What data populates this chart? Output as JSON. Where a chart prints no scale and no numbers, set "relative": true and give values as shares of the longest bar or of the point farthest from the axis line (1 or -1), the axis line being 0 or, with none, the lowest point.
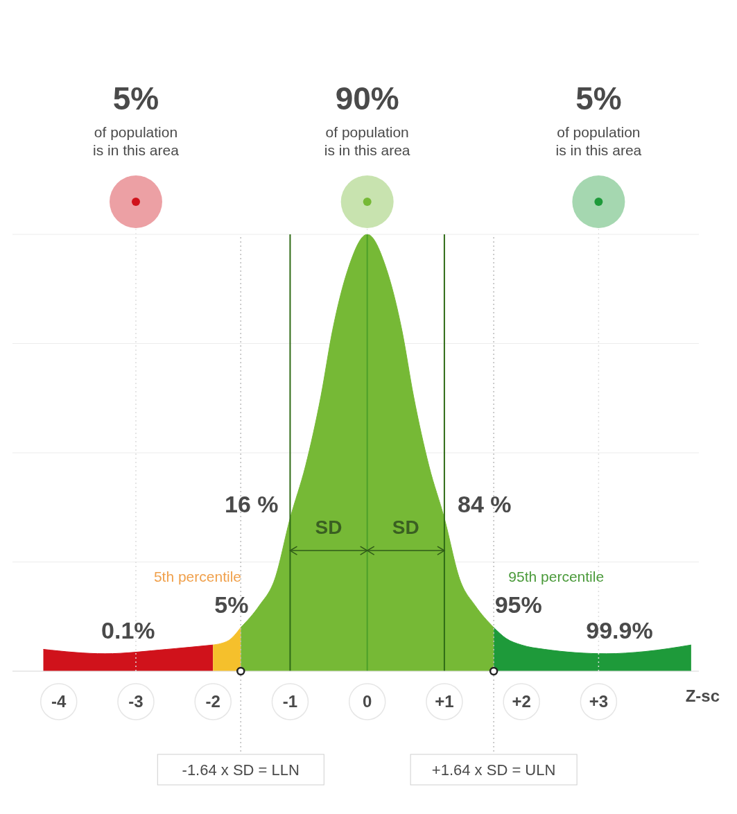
{
  "chart_data": {
    "type": "area",
    "relative": true,
    "xlabel": "Z-sc",
    "xlim": [
      -4.6,
      4.3
    ],
    "xticks": [
      -4,
      -3,
      -2,
      -1,
      0,
      {
        "value": 1,
        "label": "+1"
      },
      {
        "value": 2,
        "label": "+2"
      },
      {
        "value": 3,
        "label": "+3"
      }
    ],
    "grid": "y",
    "legend": false,
    "series": [
      {
        "color": "#d0121b",
        "x": [
          -4.2,
          -3.4,
          -2.6,
          -2.0
        ],
        "values": [
          0.05,
          0.04,
          0.05,
          0.06
        ]
      },
      {
        "color": "#f5c02c",
        "x": [
          -2.0,
          -1.8,
          -1.64
        ],
        "values": [
          0.06,
          0.07,
          0.1
        ]
      },
      {
        "color": "#76b936",
        "x": [
          -1.64,
          -1.4,
          -1.2,
          -1,
          -0.8,
          -0.6,
          -0.45,
          -0.25,
          0,
          0.25,
          0.45,
          0.6,
          0.8,
          1,
          1.2,
          1.4,
          1.64
        ],
        "values": [
          0.1,
          0.15,
          0.21,
          0.35,
          0.47,
          0.63,
          0.78,
          0.92,
          1,
          0.92,
          0.78,
          0.63,
          0.47,
          0.35,
          0.21,
          0.15,
          0.1
        ]
      },
      {
        "color": "#1e9a3a",
        "x": [
          1.64,
          1.8,
          2.0,
          2.3,
          3.1,
          3.6,
          4.2
        ],
        "values": [
          0.1,
          0.075,
          0.06,
          0.05,
          0.04,
          0.045,
          0.06
        ]
      }
    ],
    "ref_lines": [
      {
        "axis": "x",
        "value": -1.64,
        "label": "-1.64 x SD = LLN",
        "color": "#bbbbbb",
        "line_style": "dotted"
      },
      {
        "axis": "x",
        "value": 1.64,
        "label": "+1.64 x SD = ULN",
        "color": "#bbbbbb",
        "line_style": "dotted"
      },
      {
        "axis": "x",
        "value": -3,
        "color": "#dddddd",
        "line_style": "dotted"
      },
      {
        "axis": "x",
        "value": 3,
        "color": "#dddddd",
        "line_style": "dotted"
      },
      {
        "axis": "x",
        "value": -1,
        "color": "#2f6b16",
        "line_style": "solid"
      },
      {
        "axis": "x",
        "value": 0,
        "color": "#4da02a",
        "line_style": "solid"
      },
      {
        "axis": "x",
        "value": 1,
        "color": "#2f6b16",
        "line_style": "solid"
      }
    ],
    "annotations": [
      "5%\nof population\nis in this area",
      "90%\nof population\nis in this area",
      "5%\nof population\nis in this area",
      "16 %",
      "84 %",
      "SD",
      "SD",
      "5th percentile",
      "5%",
      "0.1%",
      "95th percentile",
      "95%",
      "99.9%"
    ]
  }
}
